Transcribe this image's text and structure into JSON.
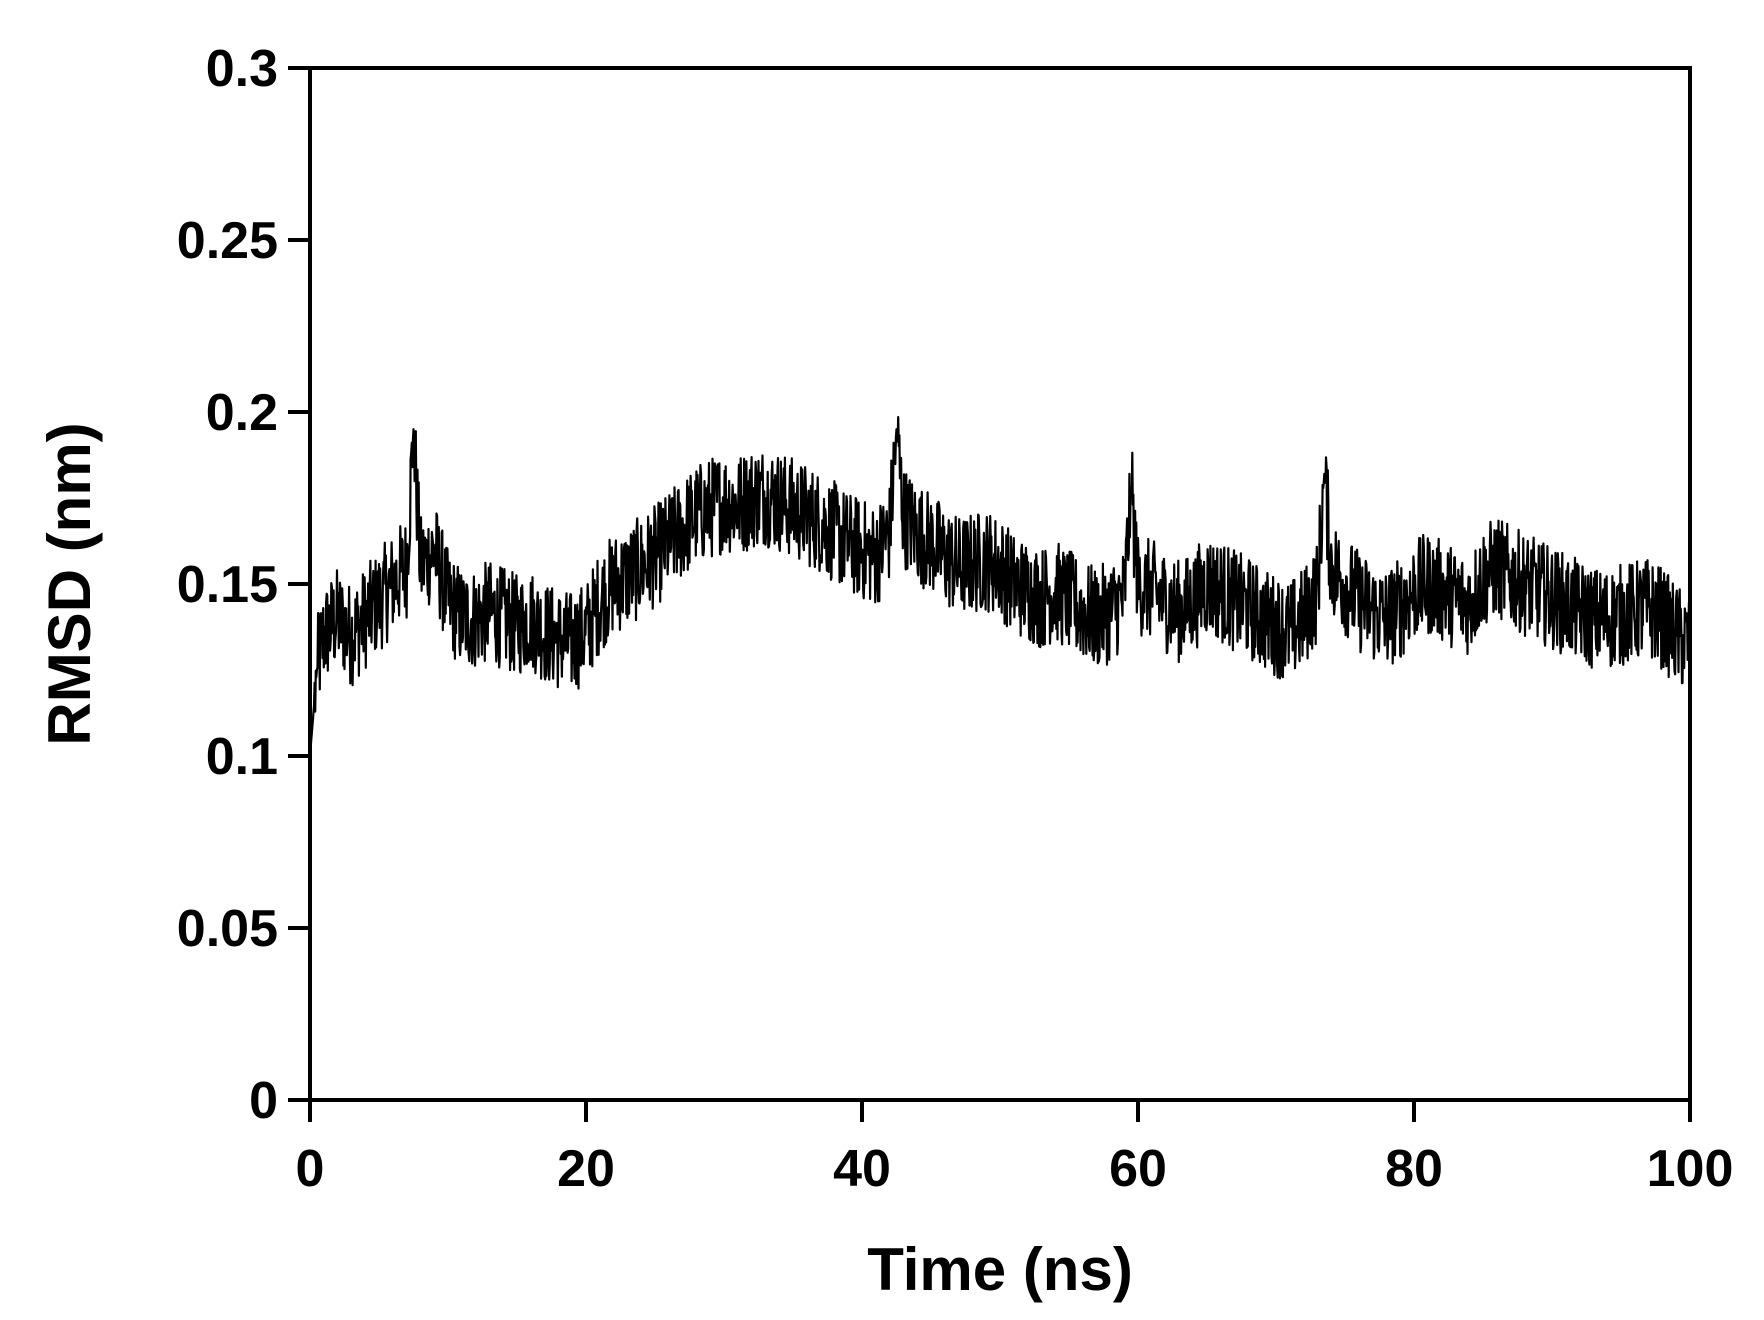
{
  "chart_data": {
    "type": "line",
    "title": "",
    "xlabel": "Time (ns)",
    "ylabel": "RMSD (nm)",
    "xlim": [
      0,
      100
    ],
    "ylim": [
      0,
      0.3
    ],
    "x_ticks": [
      "0",
      "20",
      "40",
      "60",
      "80",
      "100"
    ],
    "y_ticks": [
      "0",
      "0.05",
      "0.1",
      "0.15",
      "0.2",
      "0.25",
      "0.3"
    ],
    "grid": false,
    "legend": "none",
    "line_color": "#000000",
    "series": [
      {
        "x": [
          0,
          0.5,
          1,
          2,
          3,
          4,
          5,
          6,
          7,
          7.5,
          8,
          9,
          10,
          11,
          12,
          13,
          14,
          15,
          16,
          17,
          18,
          19,
          20,
          21,
          22,
          23,
          24,
          25,
          26,
          27,
          28,
          29,
          30,
          31,
          32,
          33,
          34,
          35,
          36,
          37,
          38,
          39,
          40,
          41,
          42,
          42.5,
          43,
          44,
          45,
          46,
          47,
          48,
          49,
          50,
          51,
          52,
          53,
          54,
          55,
          56,
          57,
          58,
          59,
          59.5,
          60,
          61,
          62,
          63,
          64,
          65,
          66,
          67,
          68,
          69,
          70,
          71,
          72,
          73,
          73.5,
          74,
          75,
          76,
          77,
          78,
          79,
          80,
          81,
          82,
          83,
          84,
          85,
          86,
          87,
          88,
          89,
          90,
          91,
          92,
          93,
          94,
          95,
          96,
          97,
          98,
          99,
          100
        ],
        "values": [
          0.1,
          0.125,
          0.135,
          0.14,
          0.135,
          0.14,
          0.145,
          0.15,
          0.155,
          0.195,
          0.155,
          0.16,
          0.145,
          0.14,
          0.14,
          0.142,
          0.14,
          0.138,
          0.14,
          0.136,
          0.134,
          0.133,
          0.136,
          0.145,
          0.15,
          0.152,
          0.155,
          0.158,
          0.162,
          0.166,
          0.17,
          0.172,
          0.174,
          0.173,
          0.175,
          0.176,
          0.174,
          0.172,
          0.17,
          0.168,
          0.165,
          0.162,
          0.16,
          0.158,
          0.165,
          0.195,
          0.17,
          0.165,
          0.162,
          0.158,
          0.155,
          0.156,
          0.157,
          0.155,
          0.15,
          0.148,
          0.146,
          0.148,
          0.145,
          0.142,
          0.14,
          0.142,
          0.146,
          0.178,
          0.15,
          0.148,
          0.145,
          0.142,
          0.145,
          0.15,
          0.148,
          0.145,
          0.143,
          0.14,
          0.138,
          0.136,
          0.14,
          0.148,
          0.182,
          0.155,
          0.15,
          0.145,
          0.142,
          0.14,
          0.143,
          0.148,
          0.15,
          0.148,
          0.146,
          0.144,
          0.152,
          0.155,
          0.152,
          0.15,
          0.148,
          0.146,
          0.144,
          0.142,
          0.14,
          0.14,
          0.141,
          0.142,
          0.143,
          0.14,
          0.135,
          0.132
        ]
      }
    ]
  }
}
